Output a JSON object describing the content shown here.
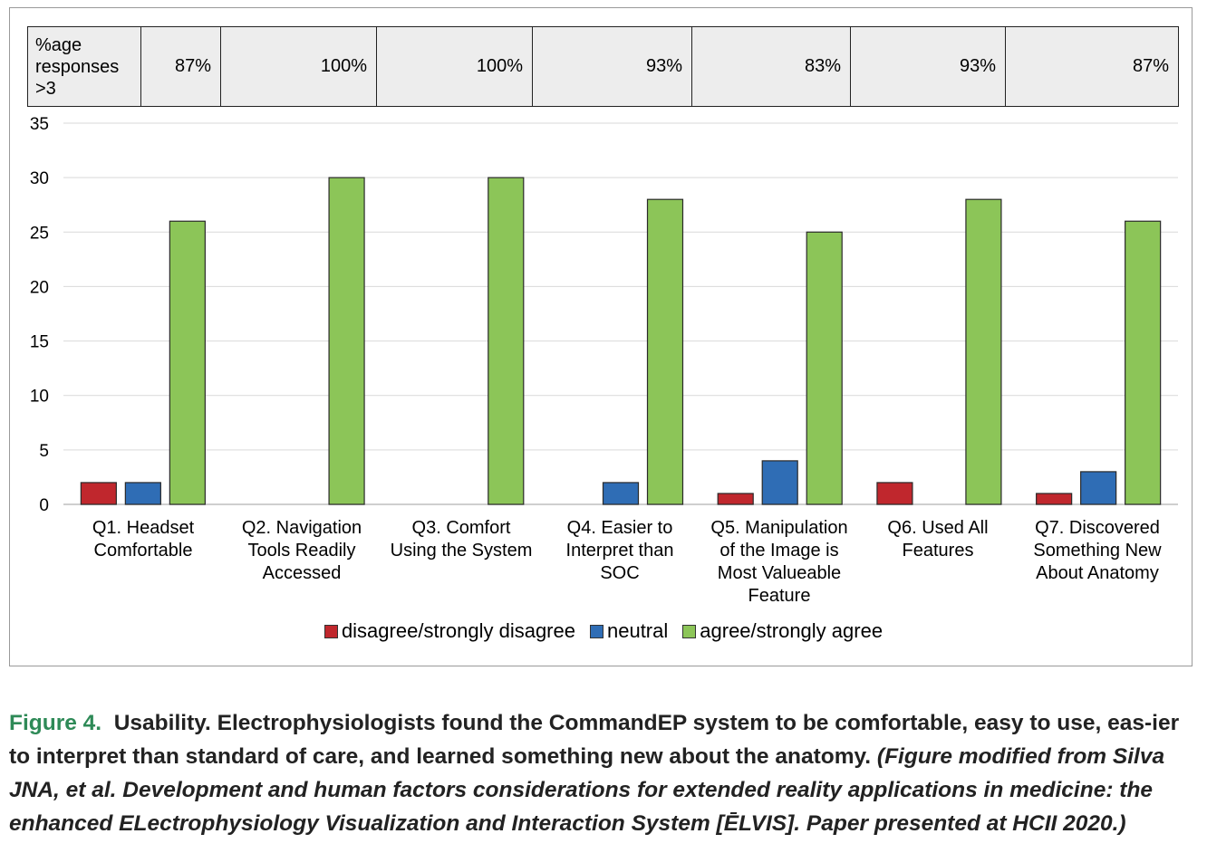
{
  "pct_table": {
    "header": "%age\nresponses\n>3",
    "values": [
      "87%",
      "100%",
      "100%",
      "93%",
      "83%",
      "93%",
      "87%"
    ]
  },
  "chart_data": {
    "type": "bar",
    "title": "",
    "xlabel": "",
    "ylabel": "",
    "ylim": [
      0,
      35
    ],
    "yticks": [
      0,
      5,
      10,
      15,
      20,
      25,
      30,
      35
    ],
    "grid": true,
    "legend_position": "bottom",
    "categories": [
      "Q1. Headset\nComfortable",
      "Q2. Navigation\nTools Readily\nAccessed",
      "Q3. Comfort\nUsing the System",
      "Q4. Easier to\nInterpret than\nSOC",
      "Q5. Manipulation\nof the Image is\nMost Valueable\nFeature",
      "Q6. Used All\nFeatures",
      "Q7. Discovered\nSomething New\nAbout Anatomy"
    ],
    "series": [
      {
        "name": "disagree/strongly disagree",
        "color": "#c0272d",
        "values": [
          2,
          0,
          0,
          0,
          1,
          2,
          1
        ]
      },
      {
        "name": "neutral",
        "color": "#2f6db5",
        "values": [
          2,
          0,
          0,
          2,
          4,
          0,
          3
        ]
      },
      {
        "name": "agree/strongly agree",
        "color": "#8cc558",
        "values": [
          26,
          30,
          30,
          28,
          25,
          28,
          26
        ]
      }
    ]
  },
  "caption": {
    "label": "Figure 4.",
    "text": "Usability. Electrophysiologists found the CommandEP system to be comfortable, easy to use, eas-ier to interpret than standard of care, and learned something new about the anatomy.",
    "reference": "(Figure modified from Silva JNA, et al. Development and human factors considerations for extended reality applications in medicine: the enhanced ELectrophysiology Visualization and Interaction System [ĒLVIS]. Paper presented at HCII 2020.)"
  }
}
